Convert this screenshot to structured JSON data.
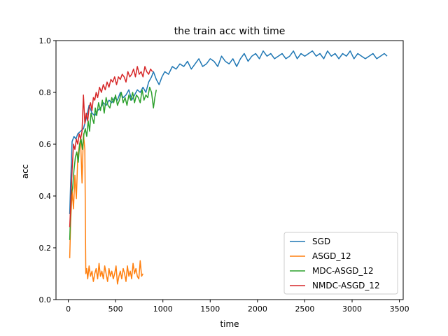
{
  "chart_data": {
    "type": "line",
    "title": "the train acc with time",
    "xlabel": "time",
    "ylabel": "acc",
    "xlim": [
      -130,
      3540
    ],
    "ylim": [
      0.0,
      1.0
    ],
    "xticks": [
      0,
      500,
      1000,
      1500,
      2000,
      2500,
      3000,
      3500
    ],
    "yticks": [
      0.0,
      0.2,
      0.4,
      0.6,
      0.8,
      1.0
    ],
    "grid": false,
    "legend_position": "lower-right",
    "series": [
      {
        "name": "SGD",
        "color": "#1f77b4",
        "x": [
          15,
          25,
          40,
          60,
          80,
          100,
          130,
          160,
          190,
          220,
          250,
          280,
          310,
          340,
          370,
          400,
          430,
          460,
          490,
          520,
          550,
          580,
          610,
          640,
          670,
          700,
          730,
          760,
          790,
          820,
          850,
          880,
          900,
          930,
          960,
          990,
          1020,
          1060,
          1100,
          1140,
          1180,
          1220,
          1260,
          1300,
          1340,
          1380,
          1420,
          1460,
          1500,
          1540,
          1580,
          1620,
          1660,
          1700,
          1740,
          1780,
          1820,
          1860,
          1900,
          1940,
          1980,
          2020,
          2060,
          2100,
          2140,
          2180,
          2220,
          2260,
          2300,
          2340,
          2380,
          2420,
          2460,
          2500,
          2540,
          2580,
          2620,
          2660,
          2700,
          2740,
          2780,
          2820,
          2860,
          2900,
          2940,
          2980,
          3020,
          3060,
          3100,
          3140,
          3180,
          3220,
          3260,
          3300,
          3340,
          3370
        ],
        "y": [
          0.33,
          0.45,
          0.61,
          0.63,
          0.62,
          0.64,
          0.65,
          0.66,
          0.7,
          0.75,
          0.72,
          0.71,
          0.73,
          0.74,
          0.76,
          0.75,
          0.77,
          0.76,
          0.78,
          0.77,
          0.8,
          0.78,
          0.79,
          0.81,
          0.77,
          0.79,
          0.81,
          0.8,
          0.82,
          0.8,
          0.84,
          0.86,
          0.88,
          0.85,
          0.83,
          0.86,
          0.88,
          0.87,
          0.9,
          0.89,
          0.91,
          0.9,
          0.92,
          0.89,
          0.91,
          0.93,
          0.9,
          0.91,
          0.93,
          0.92,
          0.9,
          0.94,
          0.92,
          0.91,
          0.93,
          0.9,
          0.93,
          0.95,
          0.92,
          0.94,
          0.95,
          0.93,
          0.96,
          0.94,
          0.95,
          0.93,
          0.94,
          0.95,
          0.93,
          0.94,
          0.96,
          0.93,
          0.95,
          0.94,
          0.95,
          0.96,
          0.94,
          0.95,
          0.93,
          0.96,
          0.94,
          0.95,
          0.93,
          0.95,
          0.94,
          0.96,
          0.93,
          0.95,
          0.94,
          0.93,
          0.94,
          0.95,
          0.93,
          0.94,
          0.95,
          0.94
        ]
      },
      {
        "name": "ASGD_12",
        "color": "#ff7f0e",
        "x": [
          15,
          25,
          40,
          55,
          70,
          85,
          100,
          115,
          130,
          145,
          160,
          175,
          185,
          195,
          205,
          220,
          235,
          250,
          265,
          280,
          295,
          310,
          325,
          340,
          355,
          370,
          385,
          400,
          415,
          430,
          445,
          460,
          475,
          490,
          505,
          520,
          535,
          550,
          565,
          580,
          595,
          610,
          625,
          640,
          655,
          670,
          685,
          700,
          715,
          730,
          745,
          760,
          775,
          790
        ],
        "y": [
          0.16,
          0.3,
          0.42,
          0.35,
          0.48,
          0.39,
          0.55,
          0.59,
          0.62,
          0.45,
          0.64,
          0.58,
          0.1,
          0.12,
          0.08,
          0.13,
          0.09,
          0.11,
          0.07,
          0.1,
          0.12,
          0.08,
          0.14,
          0.09,
          0.11,
          0.08,
          0.13,
          0.1,
          0.07,
          0.12,
          0.09,
          0.11,
          0.08,
          0.1,
          0.13,
          0.06,
          0.09,
          0.11,
          0.08,
          0.12,
          0.1,
          0.07,
          0.13,
          0.09,
          0.11,
          0.08,
          0.14,
          0.1,
          0.12,
          0.09,
          0.08,
          0.15,
          0.09,
          0.1
        ]
      },
      {
        "name": "MDC-ASGD_12",
        "color": "#2ca02c",
        "x": [
          15,
          30,
          45,
          60,
          75,
          90,
          105,
          120,
          135,
          150,
          165,
          180,
          195,
          210,
          225,
          240,
          255,
          270,
          285,
          300,
          320,
          340,
          360,
          380,
          400,
          420,
          440,
          460,
          480,
          500,
          520,
          540,
          560,
          580,
          600,
          620,
          640,
          660,
          680,
          700,
          720,
          740,
          760,
          780,
          800,
          820,
          840,
          860,
          880,
          900,
          915,
          930
        ],
        "y": [
          0.23,
          0.4,
          0.43,
          0.5,
          0.55,
          0.57,
          0.53,
          0.6,
          0.62,
          0.58,
          0.64,
          0.66,
          0.63,
          0.69,
          0.65,
          0.72,
          0.7,
          0.68,
          0.74,
          0.71,
          0.76,
          0.73,
          0.77,
          0.72,
          0.78,
          0.75,
          0.74,
          0.78,
          0.76,
          0.79,
          0.75,
          0.77,
          0.8,
          0.76,
          0.78,
          0.75,
          0.79,
          0.77,
          0.8,
          0.76,
          0.79,
          0.78,
          0.76,
          0.81,
          0.77,
          0.79,
          0.78,
          0.82,
          0.8,
          0.74,
          0.78,
          0.81
        ]
      },
      {
        "name": "NMDC-ASGD_12",
        "color": "#d62728",
        "x": [
          15,
          25,
          40,
          55,
          70,
          85,
          100,
          115,
          130,
          145,
          160,
          175,
          190,
          205,
          220,
          235,
          250,
          265,
          280,
          295,
          310,
          330,
          350,
          370,
          390,
          410,
          430,
          450,
          470,
          490,
          510,
          530,
          550,
          570,
          590,
          610,
          630,
          650,
          670,
          690,
          710,
          730,
          750,
          770,
          790,
          810,
          830,
          850,
          870,
          890
        ],
        "y": [
          0.28,
          0.36,
          0.5,
          0.6,
          0.58,
          0.62,
          0.6,
          0.64,
          0.62,
          0.65,
          0.79,
          0.68,
          0.72,
          0.69,
          0.74,
          0.76,
          0.73,
          0.78,
          0.77,
          0.8,
          0.78,
          0.82,
          0.8,
          0.83,
          0.81,
          0.84,
          0.82,
          0.85,
          0.84,
          0.86,
          0.83,
          0.86,
          0.85,
          0.87,
          0.86,
          0.84,
          0.88,
          0.86,
          0.87,
          0.89,
          0.86,
          0.9,
          0.87,
          0.88,
          0.86,
          0.9,
          0.88,
          0.87,
          0.89,
          0.88
        ]
      }
    ]
  }
}
